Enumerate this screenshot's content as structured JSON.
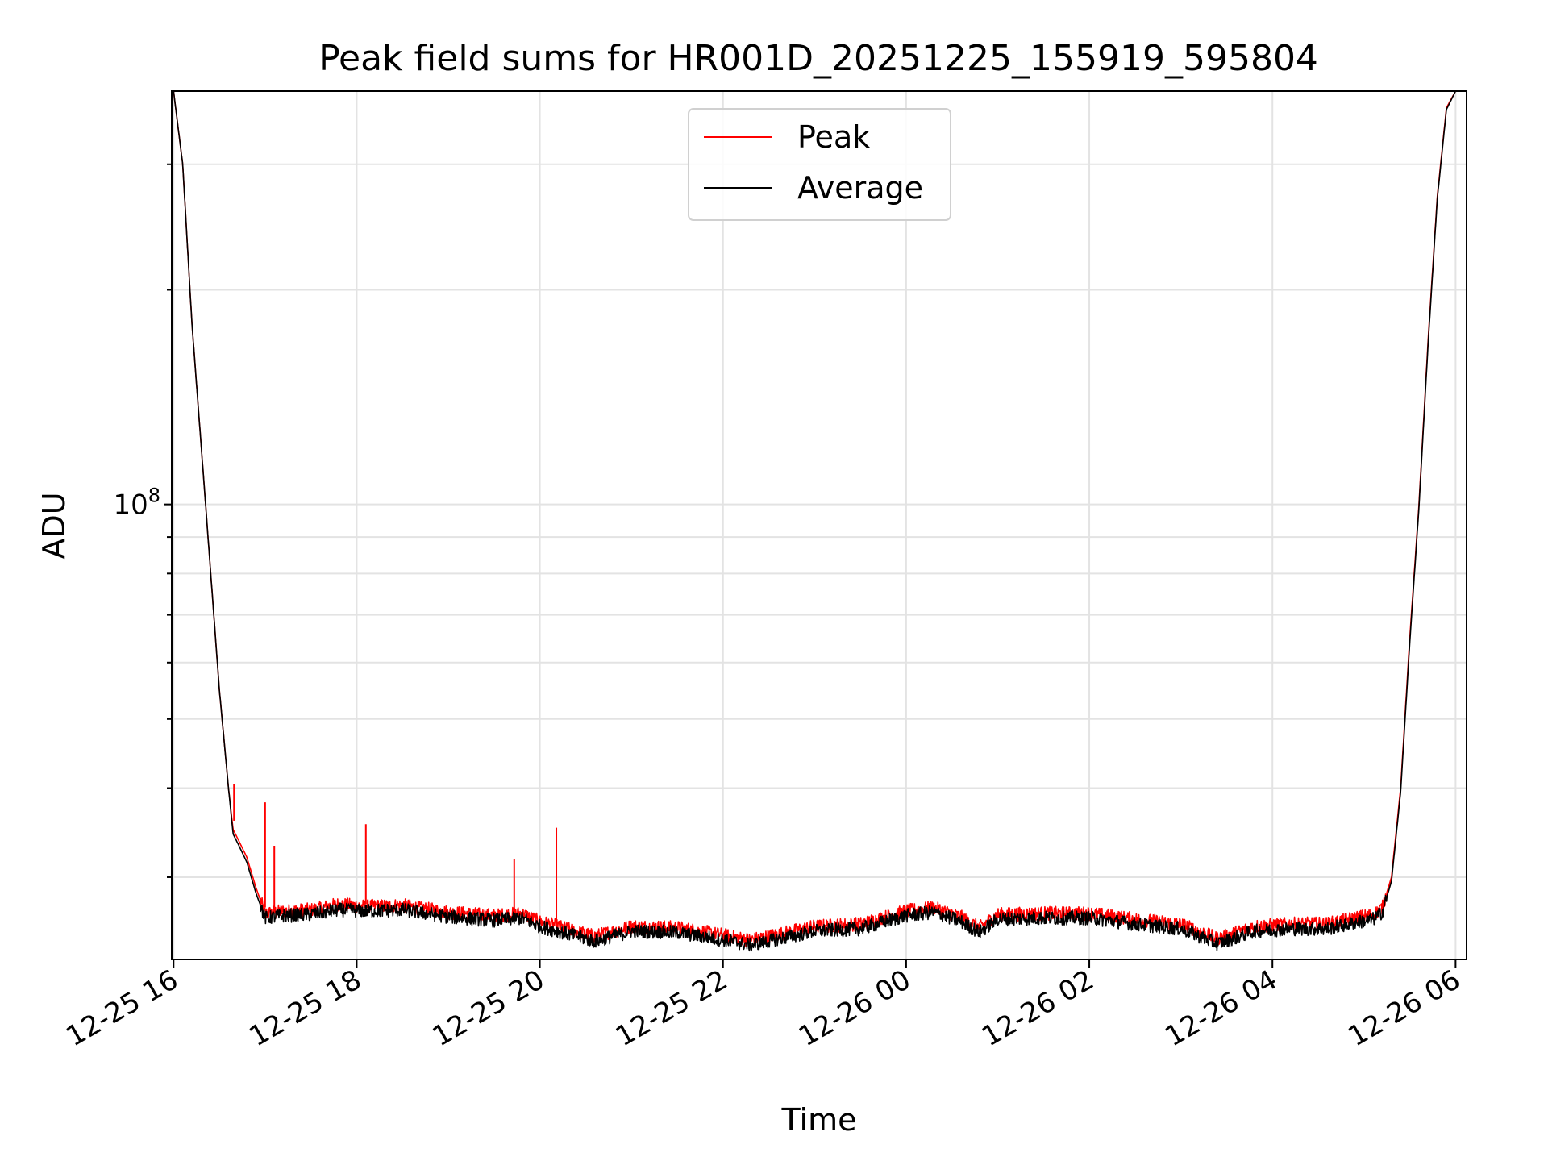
{
  "chart_data": {
    "type": "line",
    "title": "Peak field sums for HR001D_20251225_155919_595804",
    "xlabel": "Time",
    "ylabel": "ADU",
    "yscale": "log",
    "ylim": [
      23000000,
      380000000
    ],
    "xlim_hours": [
      -0.02,
      14.12
    ],
    "grid": true,
    "legend_position": "upper center",
    "x_ticks": [
      {
        "label": "12-25 16",
        "hour": 0
      },
      {
        "label": "12-25 18",
        "hour": 2
      },
      {
        "label": "12-25 20",
        "hour": 4
      },
      {
        "label": "12-25 22",
        "hour": 6
      },
      {
        "label": "12-26 00",
        "hour": 8
      },
      {
        "label": "12-26 02",
        "hour": 10
      },
      {
        "label": "12-26 04",
        "hour": 12
      },
      {
        "label": "12-26 06",
        "hour": 14
      }
    ],
    "y_ticks": [
      {
        "base": "10",
        "exp": "8",
        "value": 100000000
      }
    ],
    "series": [
      {
        "name": "Peak",
        "color": "#ff0000",
        "x": [
          0.0,
          0.1,
          0.2,
          0.35,
          0.5,
          0.6,
          0.65,
          0.7,
          0.8,
          0.9,
          1.0,
          1.2,
          1.5,
          1.8,
          2.1,
          2.5,
          3.0,
          3.5,
          3.8,
          4.0,
          4.3,
          4.6,
          5.0,
          5.5,
          6.0,
          6.3,
          6.5,
          7.0,
          7.5,
          8.0,
          8.3,
          8.6,
          8.8,
          9.0,
          9.5,
          10.0,
          10.5,
          11.0,
          11.4,
          11.8,
          12.2,
          12.6,
          12.9,
          13.1,
          13.2,
          13.3,
          13.4,
          13.5,
          13.6,
          13.7,
          13.8,
          13.9,
          14.0,
          14.12
        ],
        "y": [
          380000000,
          300000000,
          180000000,
          100000000,
          55000000,
          40000000,
          35000000,
          34000000,
          32000000,
          29000000,
          26700000,
          26900000,
          27000000,
          27500000,
          27300000,
          27400000,
          26800000,
          26500000,
          26700000,
          26000000,
          25400000,
          24800000,
          25600000,
          25500000,
          24900000,
          24500000,
          24800000,
          25600000,
          25800000,
          26900000,
          27200000,
          26400000,
          25500000,
          26600000,
          26700000,
          26700000,
          26200000,
          25800000,
          24600000,
          25600000,
          25800000,
          25800000,
          26300000,
          26600000,
          27200000,
          30000000,
          40000000,
          65000000,
          100000000,
          170000000,
          270000000,
          360000000,
          380000000,
          380000000
        ]
      },
      {
        "name": "Average",
        "color": "#000000",
        "x": [
          0.0,
          0.1,
          0.2,
          0.35,
          0.5,
          0.6,
          0.65,
          0.7,
          0.8,
          0.9,
          1.0,
          1.2,
          1.5,
          1.8,
          2.1,
          2.5,
          3.0,
          3.5,
          3.8,
          4.0,
          4.3,
          4.6,
          5.0,
          5.5,
          6.0,
          6.3,
          6.5,
          7.0,
          7.5,
          8.0,
          8.3,
          8.6,
          8.8,
          9.0,
          9.5,
          10.0,
          10.5,
          11.0,
          11.4,
          11.8,
          12.2,
          12.6,
          12.9,
          13.1,
          13.2,
          13.3,
          13.4,
          13.5,
          13.6,
          13.7,
          13.8,
          13.9,
          14.0,
          14.12
        ],
        "y": [
          380000000,
          300000000,
          180000000,
          100000000,
          55000000,
          40000000,
          34500000,
          33500000,
          31500000,
          28500000,
          26300000,
          26500000,
          26600000,
          27000000,
          26900000,
          27000000,
          26400000,
          26100000,
          26300000,
          25600000,
          25000000,
          24400000,
          25200000,
          25100000,
          24500000,
          24100000,
          24400000,
          25200000,
          25400000,
          26500000,
          26800000,
          26000000,
          25100000,
          26200000,
          26300000,
          26300000,
          25800000,
          25400000,
          24200000,
          25200000,
          25400000,
          25400000,
          25900000,
          26200000,
          26800000,
          29600000,
          39500000,
          64000000,
          99000000,
          168000000,
          268000000,
          358000000,
          380000000,
          380000000
        ]
      }
    ],
    "spikes": [
      {
        "hour": 0.66,
        "base": 36000000,
        "top": 40500000
      },
      {
        "hour": 1.0,
        "base": 27200000,
        "top": 38200000
      },
      {
        "hour": 1.1,
        "base": 27200000,
        "top": 33200000
      },
      {
        "hour": 2.1,
        "base": 27500000,
        "top": 35600000
      },
      {
        "hour": 3.72,
        "base": 26800000,
        "top": 31800000
      },
      {
        "hour": 4.18,
        "base": 25800000,
        "top": 35200000
      }
    ]
  }
}
